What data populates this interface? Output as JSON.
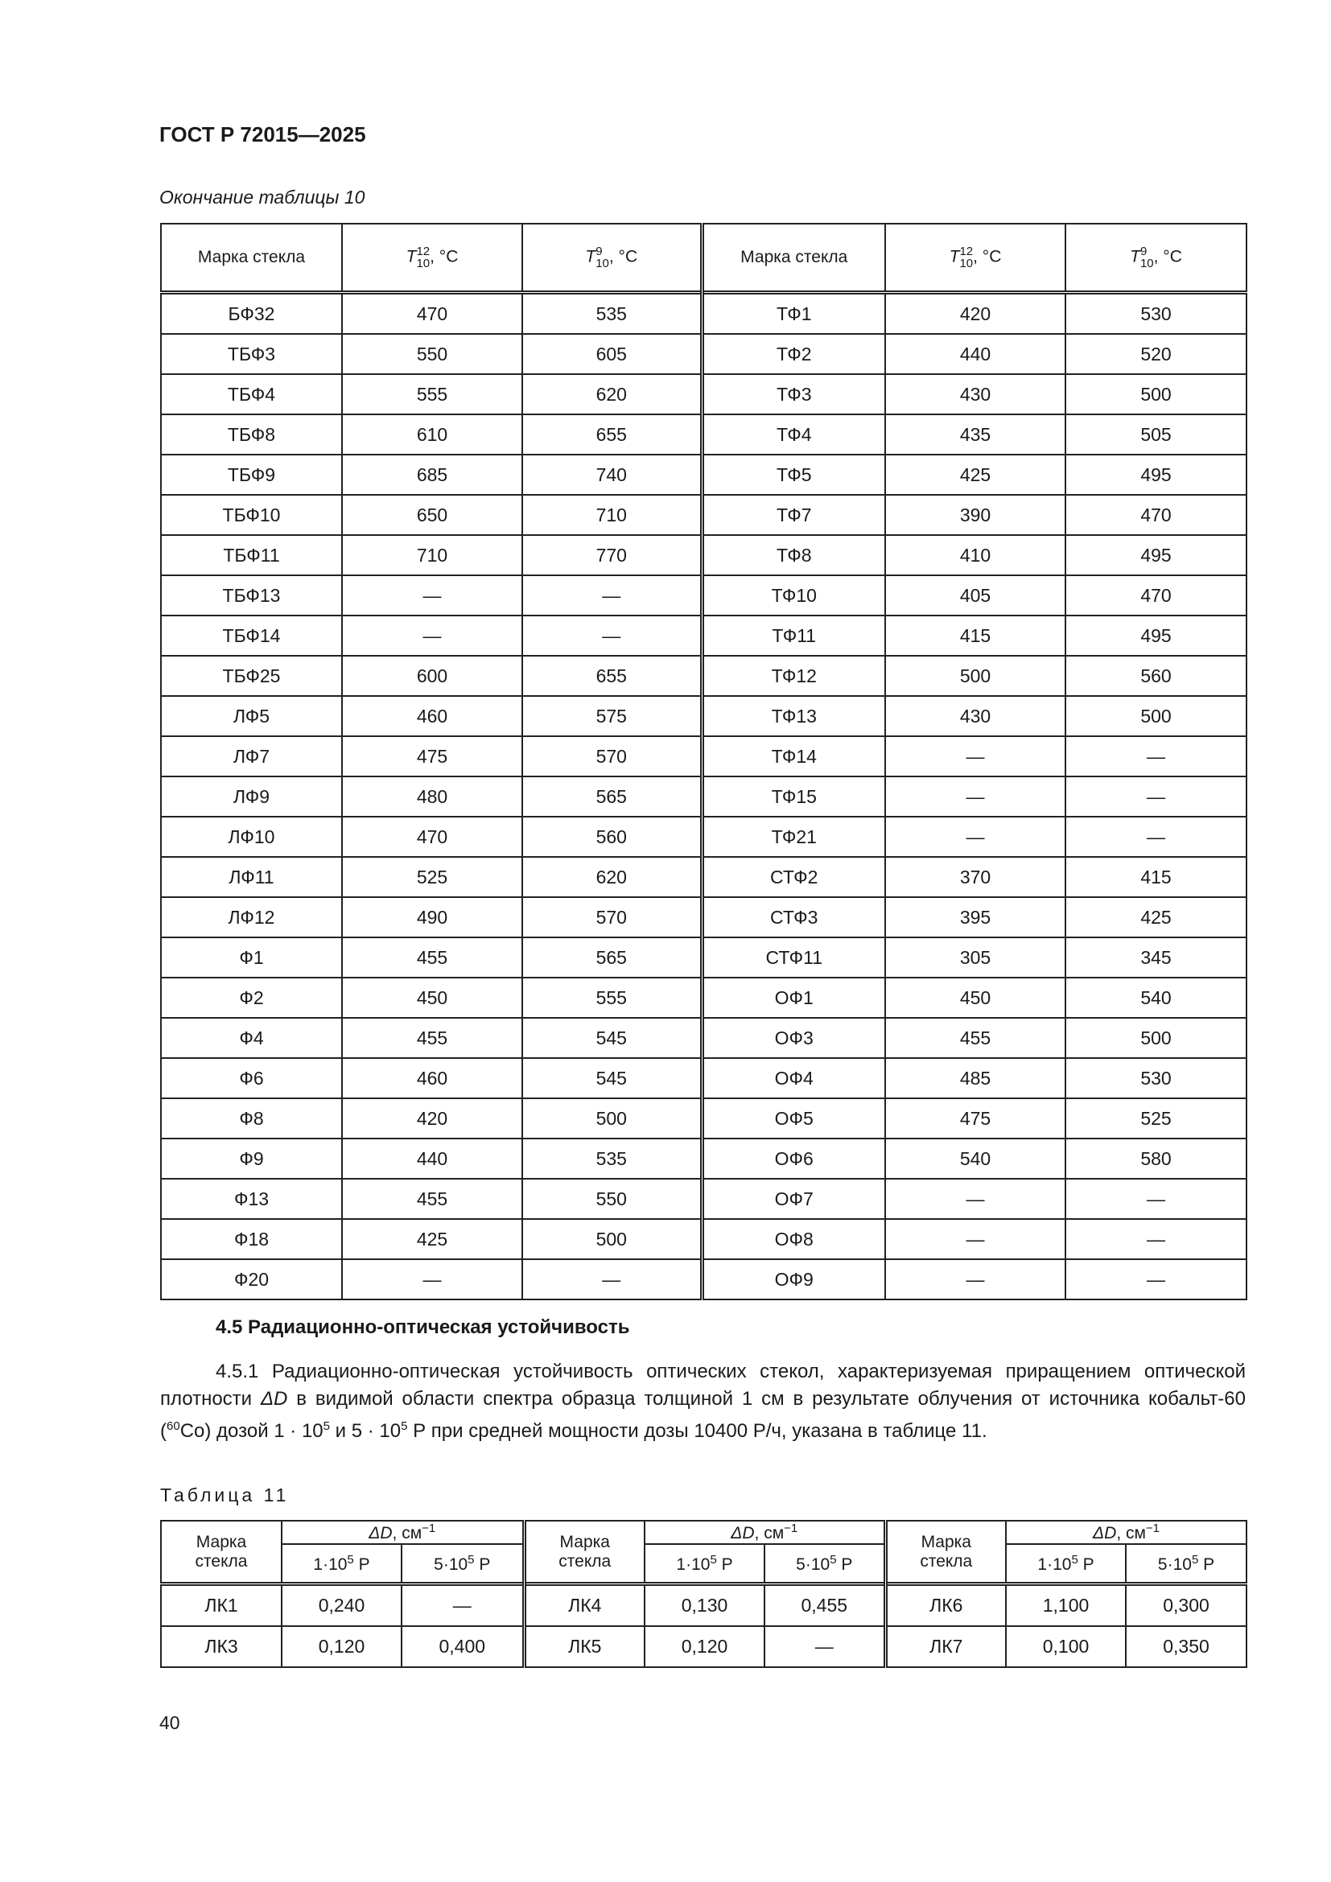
{
  "header": {
    "doc_title": "ГОСТ Р 72015—2025",
    "continuation": "Окончание таблицы 10"
  },
  "table10": {
    "headers": {
      "grade": "Марка стекла",
      "t12": "T",
      "t12_sup": "12",
      "t12_sub": "10",
      "t9": "T",
      "t9_sup": "9",
      "t9_sub": "10",
      "unit": ", °C"
    },
    "left": [
      [
        "БФ32",
        "470",
        "535"
      ],
      [
        "ТБФ3",
        "550",
        "605"
      ],
      [
        "ТБФ4",
        "555",
        "620"
      ],
      [
        "ТБФ8",
        "610",
        "655"
      ],
      [
        "ТБФ9",
        "685",
        "740"
      ],
      [
        "ТБФ10",
        "650",
        "710"
      ],
      [
        "ТБФ11",
        "710",
        "770"
      ],
      [
        "ТБФ13",
        "—",
        "—"
      ],
      [
        "ТБФ14",
        "—",
        "—"
      ],
      [
        "ТБФ25",
        "600",
        "655"
      ],
      [
        "ЛФ5",
        "460",
        "575"
      ],
      [
        "ЛФ7",
        "475",
        "570"
      ],
      [
        "ЛФ9",
        "480",
        "565"
      ],
      [
        "ЛФ10",
        "470",
        "560"
      ],
      [
        "ЛФ11",
        "525",
        "620"
      ],
      [
        "ЛФ12",
        "490",
        "570"
      ],
      [
        "Ф1",
        "455",
        "565"
      ],
      [
        "Ф2",
        "450",
        "555"
      ],
      [
        "Ф4",
        "455",
        "545"
      ],
      [
        "Ф6",
        "460",
        "545"
      ],
      [
        "Ф8",
        "420",
        "500"
      ],
      [
        "Ф9",
        "440",
        "535"
      ],
      [
        "Ф13",
        "455",
        "550"
      ],
      [
        "Ф18",
        "425",
        "500"
      ],
      [
        "Ф20",
        "—",
        "—"
      ]
    ],
    "right": [
      [
        "ТФ1",
        "420",
        "530"
      ],
      [
        "ТФ2",
        "440",
        "520"
      ],
      [
        "ТФ3",
        "430",
        "500"
      ],
      [
        "ТФ4",
        "435",
        "505"
      ],
      [
        "ТФ5",
        "425",
        "495"
      ],
      [
        "ТФ7",
        "390",
        "470"
      ],
      [
        "ТФ8",
        "410",
        "495"
      ],
      [
        "ТФ10",
        "405",
        "470"
      ],
      [
        "ТФ11",
        "415",
        "495"
      ],
      [
        "ТФ12",
        "500",
        "560"
      ],
      [
        "ТФ13",
        "430",
        "500"
      ],
      [
        "ТФ14",
        "—",
        "—"
      ],
      [
        "ТФ15",
        "—",
        "—"
      ],
      [
        "ТФ21",
        "—",
        "—"
      ],
      [
        "СТФ2",
        "370",
        "415"
      ],
      [
        "СТФ3",
        "395",
        "425"
      ],
      [
        "СТФ11",
        "305",
        "345"
      ],
      [
        "ОФ1",
        "450",
        "540"
      ],
      [
        "ОФ3",
        "455",
        "500"
      ],
      [
        "ОФ4",
        "485",
        "530"
      ],
      [
        "ОФ5",
        "475",
        "525"
      ],
      [
        "ОФ6",
        "540",
        "580"
      ],
      [
        "ОФ7",
        "—",
        "—"
      ],
      [
        "ОФ8",
        "—",
        "—"
      ],
      [
        "ОФ9",
        "—",
        "—"
      ]
    ]
  },
  "section": {
    "heading": "4.5 Радиационно-оптическая устойчивость",
    "para_1": "4.5.1 Радиационно-оптическая устойчивость оптических стекол, характеризуемая приращением оптической плотности ",
    "para_sym": "ΔD",
    "para_2": " в видимой области спектра образца толщиной 1 см в результате облучения от источника кобальт-60 (",
    "para_iso": "60",
    "para_3": "Co) дозой 1 · 10",
    "para_exp1": "5",
    "para_4": " и 5 · 10",
    "para_exp2": "5",
    "para_5": " Р при средней мощности дозы 10400 Р/ч, указана в таблице 11."
  },
  "table11": {
    "caption": "Таблица 11",
    "headers": {
      "grade_1": "Марка",
      "grade_2": "стекла",
      "delta": "ΔD",
      "delta_unit": ", см",
      "delta_exp": "−1",
      "dose1": "1·10",
      "dose2": "5·10",
      "dose_exp": "5",
      "dose_unit": " Р"
    },
    "rows": [
      [
        [
          "ЛК1",
          "0,240",
          "—"
        ],
        [
          "ЛК4",
          "0,130",
          "0,455"
        ],
        [
          "ЛК6",
          "1,100",
          "0,300"
        ]
      ],
      [
        [
          "ЛК3",
          "0,120",
          "0,400"
        ],
        [
          "ЛК5",
          "0,120",
          "—"
        ],
        [
          "ЛК7",
          "0,100",
          "0,350"
        ]
      ]
    ]
  },
  "footer": {
    "page_number": "40"
  }
}
